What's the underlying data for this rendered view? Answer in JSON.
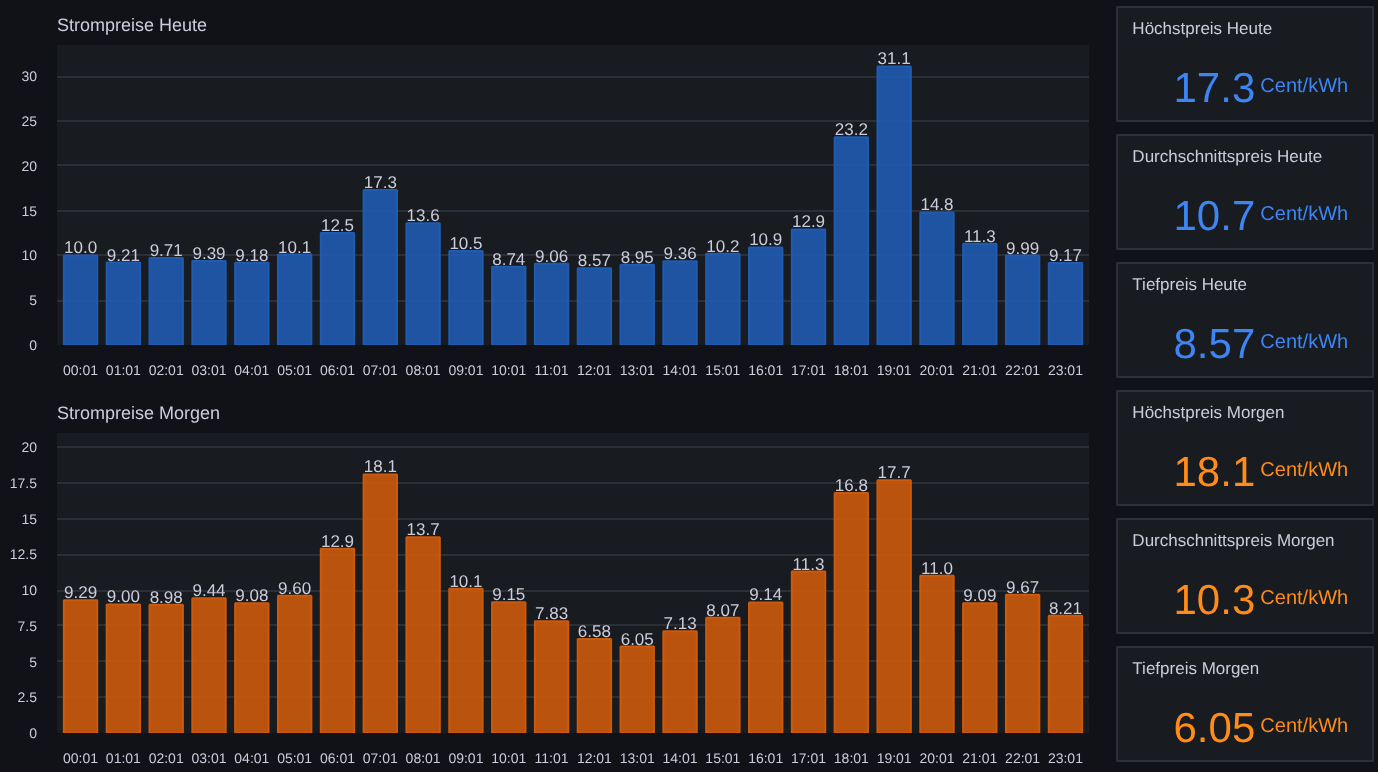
{
  "chart_data": [
    {
      "type": "bar",
      "title": "Strompreise Heute",
      "categories": [
        "00:01",
        "01:01",
        "02:01",
        "03:01",
        "04:01",
        "05:01",
        "06:01",
        "07:01",
        "08:01",
        "09:01",
        "10:01",
        "11:01",
        "12:01",
        "13:01",
        "14:01",
        "15:01",
        "16:01",
        "17:01",
        "18:01",
        "19:01",
        "20:01",
        "21:01",
        "22:01",
        "23:01"
      ],
      "values": [
        10.0,
        9.21,
        9.71,
        9.39,
        9.18,
        10.1,
        12.5,
        17.3,
        13.6,
        10.5,
        8.74,
        9.06,
        8.57,
        8.95,
        9.36,
        10.2,
        10.9,
        12.9,
        23.2,
        31.1,
        14.8,
        11.3,
        9.99,
        9.17
      ],
      "value_labels": [
        "10.0",
        "9.21",
        "9.71",
        "9.39",
        "9.18",
        "10.1",
        "12.5",
        "17.3",
        "13.6",
        "10.5",
        "8.74",
        "9.06",
        "8.57",
        "8.95",
        "9.36",
        "10.2",
        "10.9",
        "12.9",
        "23.2",
        "31.1",
        "14.8",
        "11.3",
        "9.99",
        "9.17"
      ],
      "color": "#1f5bb0",
      "ylim": [
        0,
        33.5
      ],
      "yticks": [
        0,
        5,
        10,
        15,
        20,
        25,
        30
      ],
      "grid": "y"
    },
    {
      "type": "bar",
      "title": "Strompreise Morgen",
      "categories": [
        "00:01",
        "01:01",
        "02:01",
        "03:01",
        "04:01",
        "05:01",
        "06:01",
        "07:01",
        "08:01",
        "09:01",
        "10:01",
        "11:01",
        "12:01",
        "13:01",
        "14:01",
        "15:01",
        "16:01",
        "17:01",
        "18:01",
        "19:01",
        "20:01",
        "21:01",
        "22:01",
        "23:01"
      ],
      "values": [
        9.29,
        9.0,
        8.98,
        9.44,
        9.08,
        9.6,
        12.9,
        18.1,
        13.7,
        10.1,
        9.15,
        7.83,
        6.58,
        6.05,
        7.13,
        8.07,
        9.14,
        11.3,
        16.8,
        17.7,
        11.0,
        9.09,
        9.67,
        8.21
      ],
      "value_labels": [
        "9.29",
        "9.00",
        "8.98",
        "9.44",
        "9.08",
        "9.60",
        "12.9",
        "18.1",
        "13.7",
        "10.1",
        "9.15",
        "7.83",
        "6.58",
        "6.05",
        "7.13",
        "8.07",
        "9.14",
        "11.3",
        "16.8",
        "17.7",
        "11.0",
        "9.09",
        "9.67",
        "8.21"
      ],
      "color": "#cc5a0c",
      "ylim": [
        0,
        21
      ],
      "yticks": [
        0,
        2.5,
        5,
        7.5,
        10,
        12.5,
        15,
        17.5,
        20
      ],
      "grid": "y"
    },
    {
      "type": "other",
      "title": "Höchstpreis Heute",
      "annotations": [
        "17.3",
        "Cent/kWh"
      ],
      "color": "#3d85f5"
    },
    {
      "type": "other",
      "title": "Durchschnittspreis Heute",
      "annotations": [
        "10.7",
        "Cent/kWh"
      ],
      "color": "#3d85f5"
    },
    {
      "type": "other",
      "title": "Tiefpreis Heute",
      "annotations": [
        "8.57",
        "Cent/kWh"
      ],
      "color": "#3d85f5"
    },
    {
      "type": "other",
      "title": "Höchstpreis Morgen",
      "annotations": [
        "18.1",
        "Cent/kWh"
      ],
      "color": "#ff8c1a"
    },
    {
      "type": "other",
      "title": "Durchschnittspreis Morgen",
      "annotations": [
        "10.3",
        "Cent/kWh"
      ],
      "color": "#ff8c1a"
    },
    {
      "type": "other",
      "title": "Tiefpreis Morgen",
      "annotations": [
        "6.05",
        "Cent/kWh"
      ],
      "color": "#ff8c1a"
    }
  ]
}
